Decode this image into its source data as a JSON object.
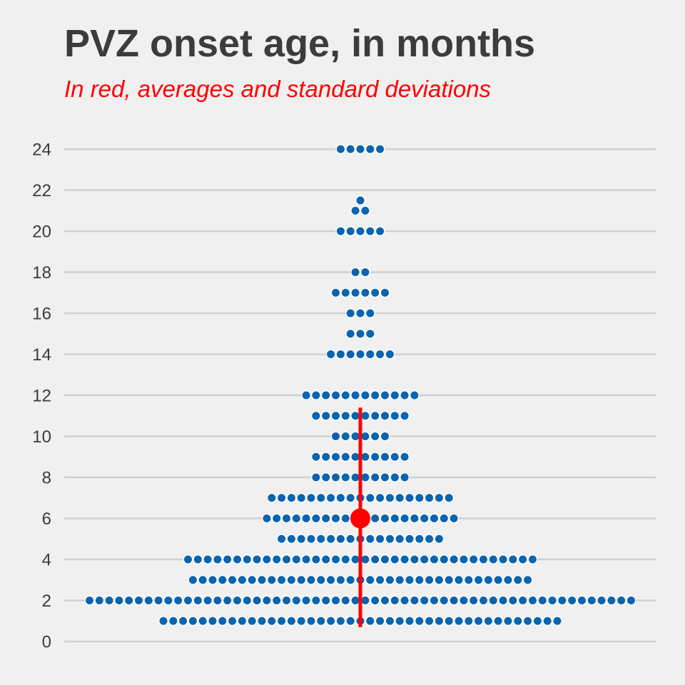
{
  "chart_data": {
    "type": "scatter",
    "subtype": "beeswarm",
    "title": "PVZ onset age, in months",
    "subtitle": "In red, averages and standard deviations",
    "xlabel": "",
    "ylabel": "",
    "ylim": [
      0,
      24
    ],
    "y_ticks": [
      0,
      2,
      4,
      6,
      8,
      10,
      12,
      14,
      16,
      18,
      20,
      22,
      24
    ],
    "grid": true,
    "legend": "none",
    "colors": {
      "background": "#f0f0f0",
      "points": "#0a64b0",
      "point_outline": "#ffffff",
      "summary": "#ff0000",
      "grid": "#d0d0d0",
      "text": "#3c3c3c"
    },
    "distribution": [
      {
        "y": 1,
        "count": 41
      },
      {
        "y": 2,
        "count": 56
      },
      {
        "y": 3,
        "count": 35
      },
      {
        "y": 4,
        "count": 36
      },
      {
        "y": 5,
        "count": 17
      },
      {
        "y": 6,
        "count": 20
      },
      {
        "y": 7,
        "count": 19
      },
      {
        "y": 8,
        "count": 10
      },
      {
        "y": 9,
        "count": 10
      },
      {
        "y": 10,
        "count": 6
      },
      {
        "y": 11,
        "count": 10
      },
      {
        "y": 12,
        "count": 12
      },
      {
        "y": 14,
        "count": 7
      },
      {
        "y": 15,
        "count": 3
      },
      {
        "y": 16,
        "count": 3
      },
      {
        "y": 17,
        "count": 6
      },
      {
        "y": 18,
        "count": 2
      },
      {
        "y": 20,
        "count": 5
      },
      {
        "y": 21,
        "count": 2
      },
      {
        "y": 21.5,
        "count": 1
      },
      {
        "y": 24,
        "count": 5
      }
    ],
    "summary": {
      "mean": 6,
      "sd_range": [
        0.7,
        11.4
      ]
    }
  }
}
